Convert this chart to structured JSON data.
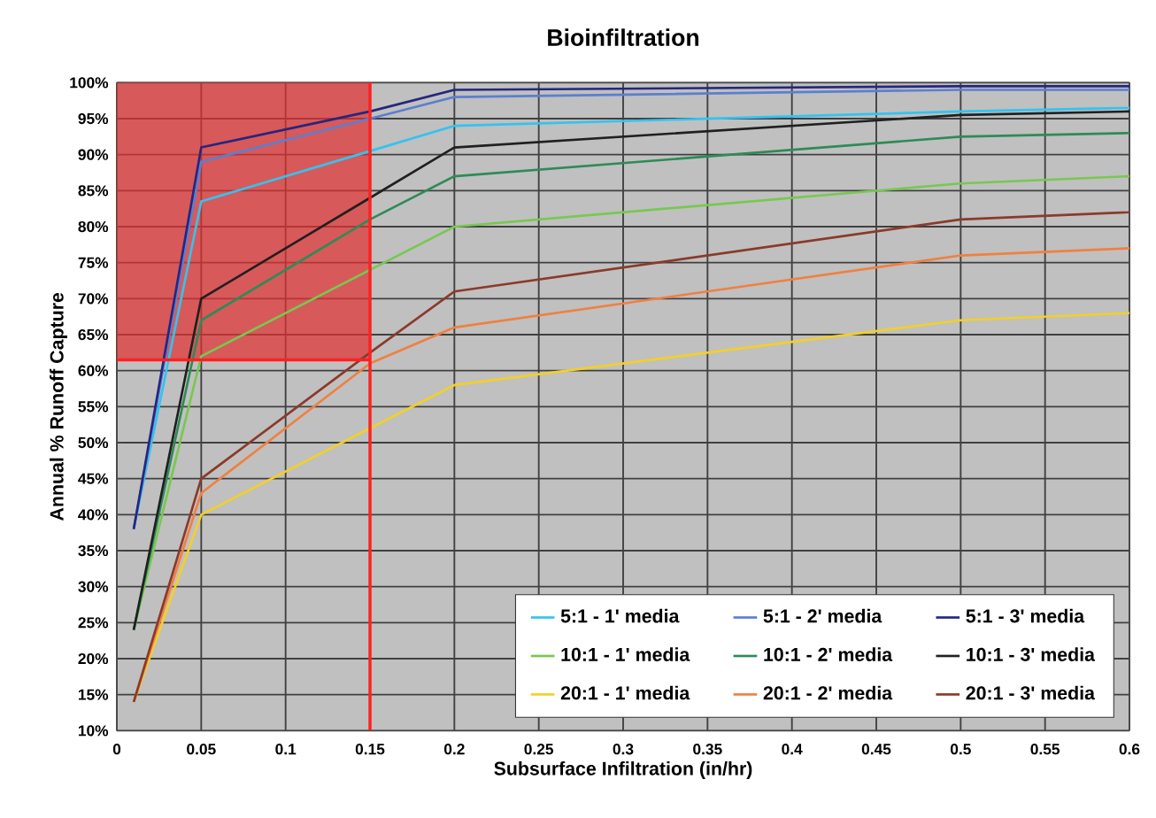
{
  "chart_data": {
    "type": "line",
    "title": "Bioinfiltration",
    "xlabel": "Subsurface Infiltration (in/hr)",
    "ylabel": "Annual % Runoff Capture",
    "x": [
      0.01,
      0.05,
      0.15,
      0.2,
      0.5,
      0.6
    ],
    "series": [
      {
        "name": "5:1 - 1' media",
        "color": "#33c3f0",
        "values": [
          38,
          83.5,
          90.5,
          94,
          96,
          96.5
        ]
      },
      {
        "name": "5:1 - 2' media",
        "color": "#5b7fd0",
        "values": [
          38,
          89,
          95,
          98,
          99,
          99
        ]
      },
      {
        "name": "5:1 - 3' media",
        "color": "#262680",
        "values": [
          38,
          91,
          96,
          99,
          99.5,
          99.5
        ]
      },
      {
        "name": "10:1 - 1' media",
        "color": "#78c850",
        "values": [
          24,
          62,
          74,
          80,
          86,
          87
        ]
      },
      {
        "name": "10:1 - 2' media",
        "color": "#2e8b57",
        "values": [
          24,
          67,
          81,
          87,
          92.5,
          93
        ]
      },
      {
        "name": "10:1 - 3' media",
        "color": "#202020",
        "values": [
          24,
          70,
          84,
          91,
          95.5,
          96
        ]
      },
      {
        "name": "20:1 - 1' media",
        "color": "#f2d028",
        "values": [
          14,
          40,
          52,
          58,
          67,
          68
        ]
      },
      {
        "name": "20:1 - 2' media",
        "color": "#f08040",
        "values": [
          14,
          43,
          61,
          66,
          76,
          77
        ]
      },
      {
        "name": "20:1 - 3' media",
        "color": "#8b3a2a",
        "values": [
          14,
          45,
          62.5,
          71,
          81,
          82
        ]
      }
    ],
    "xlim": [
      0,
      0.6
    ],
    "ylim": [
      10,
      100
    ],
    "xticks": [
      0,
      0.05,
      0.1,
      0.15,
      0.2,
      0.25,
      0.3,
      0.35,
      0.4,
      0.45,
      0.5,
      0.55,
      0.6
    ],
    "yticks": [
      {
        "value": 10,
        "label": "10%"
      },
      {
        "value": 15,
        "label": "15%"
      },
      {
        "value": 20,
        "label": "20%"
      },
      {
        "value": 25,
        "label": "25%"
      },
      {
        "value": 30,
        "label": "30%"
      },
      {
        "value": 35,
        "label": "35%"
      },
      {
        "value": 40,
        "label": "40%"
      },
      {
        "value": 45,
        "label": "45%"
      },
      {
        "value": 50,
        "label": "50%"
      },
      {
        "value": 55,
        "label": "55%"
      },
      {
        "value": 60,
        "label": "60%"
      },
      {
        "value": 65,
        "label": "65%"
      },
      {
        "value": 70,
        "label": "70%"
      },
      {
        "value": 75,
        "label": "75%"
      },
      {
        "value": 80,
        "label": "80%"
      },
      {
        "value": 85,
        "label": "85%"
      },
      {
        "value": 90,
        "label": "90%"
      },
      {
        "value": 95,
        "label": "95%"
      },
      {
        "value": 100,
        "label": "100%"
      }
    ],
    "ref_lines": [
      {
        "axis": "x",
        "value": 0.15,
        "color": "#ff2020"
      },
      {
        "axis": "y",
        "value": 61.5,
        "color": "#ff2020"
      }
    ],
    "bands": [
      {
        "axis": "x",
        "from": 0,
        "to": 0.15,
        "color": "#e03030"
      }
    ],
    "grid": true,
    "legend": "bottom right",
    "marker": "none",
    "line_style": "solid"
  }
}
